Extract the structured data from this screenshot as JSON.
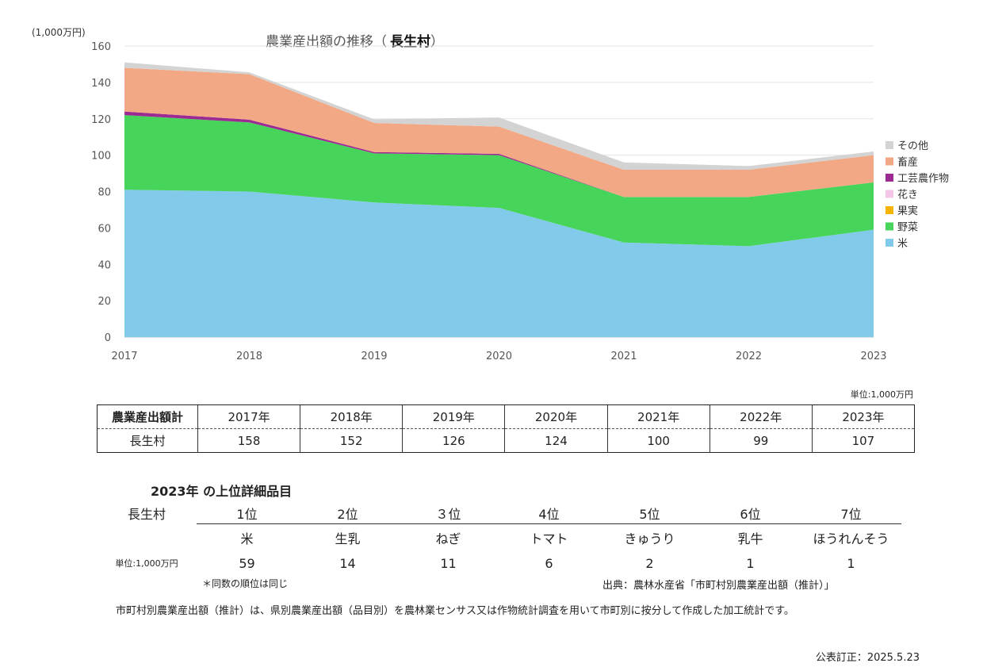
{
  "header": {
    "unit_label": "(1,000万円)",
    "title": "農業産出額の推移（",
    "place": "長生村",
    "title_close": "）"
  },
  "chart_data": {
    "type": "area",
    "stacked": true,
    "x": [
      "2017",
      "2018",
      "2019",
      "2020",
      "2021",
      "2022",
      "2023"
    ],
    "ylim": [
      0,
      160
    ],
    "yticks": [
      0,
      20,
      40,
      60,
      80,
      100,
      120,
      140,
      160
    ],
    "grid": true,
    "legend_position": "right",
    "series": [
      {
        "name": "米",
        "color": "#82CAEA",
        "values": [
          81,
          80,
          74,
          71,
          52,
          50,
          59
        ]
      },
      {
        "name": "野菜",
        "color": "#46D45A",
        "values": [
          41,
          38,
          27,
          29,
          25,
          27,
          26
        ]
      },
      {
        "name": "果実",
        "color": "#F6B400",
        "values": [
          0,
          0,
          0,
          0,
          0,
          0,
          0
        ]
      },
      {
        "name": "花き",
        "color": "#F4C6E8",
        "values": [
          0,
          0,
          0,
          0,
          0,
          0,
          0
        ]
      },
      {
        "name": "工芸農作物",
        "color": "#9B2B92",
        "values": [
          2,
          1.5,
          0.7,
          0.7,
          0,
          0,
          0
        ]
      },
      {
        "name": "畜産",
        "color": "#F2A884",
        "values": [
          24,
          25,
          16,
          15,
          15,
          15,
          15
        ]
      },
      {
        "name": "その他",
        "color": "#D3D3D3",
        "values": [
          3,
          1,
          2,
          5,
          4,
          2,
          2
        ]
      }
    ],
    "legend_order": [
      "その他",
      "畜産",
      "工芸農作物",
      "花き",
      "果実",
      "野菜",
      "米"
    ]
  },
  "totals": {
    "unit": "単位:1,000万円",
    "header_label": "農業産出額計",
    "years": [
      "2017年",
      "2018年",
      "2019年",
      "2020年",
      "2021年",
      "2022年",
      "2023年"
    ],
    "row_label": "長生村",
    "values": [
      "158",
      "152",
      "126",
      "124",
      "100",
      "99",
      "107"
    ]
  },
  "ranking": {
    "title": "2023年 の上位詳細品目",
    "place": "長生村",
    "unit": "単位:1,000万円",
    "ranks": [
      "1位",
      "2位",
      "３位",
      "4位",
      "5位",
      "6位",
      "7位"
    ],
    "items": [
      "米",
      "生乳",
      "ねぎ",
      "トマト",
      "きゅうり",
      "乳牛",
      "ほうれんそう"
    ],
    "values": [
      "59",
      "14",
      "11",
      "6",
      "2",
      "1",
      "1"
    ]
  },
  "notes": {
    "same_rank": "＊同数の順位は同じ",
    "source": "出典：農林水産省「市町村別農業産出額（推計）」",
    "footnote": "市町村別農業産出額（推計）は、県別農業産出額（品目別）を農林業センサス又は作物統計調査を用いて市町別に按分して作成した加工統計です。",
    "revised": "公表訂正：2025.5.23"
  }
}
